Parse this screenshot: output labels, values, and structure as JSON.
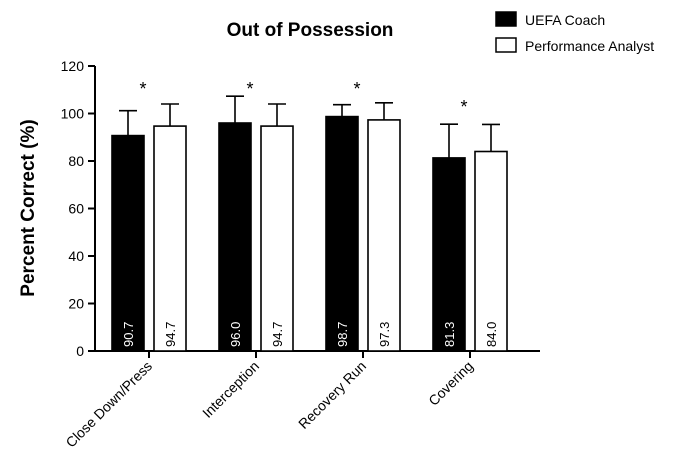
{
  "chart_data": {
    "type": "bar",
    "title": "Out of Possession",
    "ylabel": "Percent Correct (%)",
    "xlabel": "",
    "ylim": [
      0,
      120
    ],
    "yticks": [
      0,
      20,
      40,
      60,
      80,
      100,
      120
    ],
    "categories": [
      "Close Down/Press",
      "Interception",
      "Recovery Run",
      "Covering"
    ],
    "series": [
      {
        "name": "UEFA Coach",
        "color": "#000000",
        "values": [
          90.7,
          96.0,
          98.7,
          81.3
        ],
        "labels": [
          "90.7",
          "96.0",
          "98.7",
          "81.3"
        ],
        "errors": [
          10.5,
          11.3,
          5.0,
          14.2
        ]
      },
      {
        "name": "Performance Analyst",
        "color": "#ffffff",
        "values": [
          94.7,
          94.7,
          97.3,
          84.0
        ],
        "labels": [
          "94.7",
          "94.7",
          "97.3",
          "84.0"
        ],
        "errors": [
          9.3,
          9.3,
          7.2,
          11.4
        ]
      }
    ],
    "significance": [
      "*",
      "*",
      "*",
      "*"
    ],
    "legend_position": "top-right",
    "grid": false
  }
}
